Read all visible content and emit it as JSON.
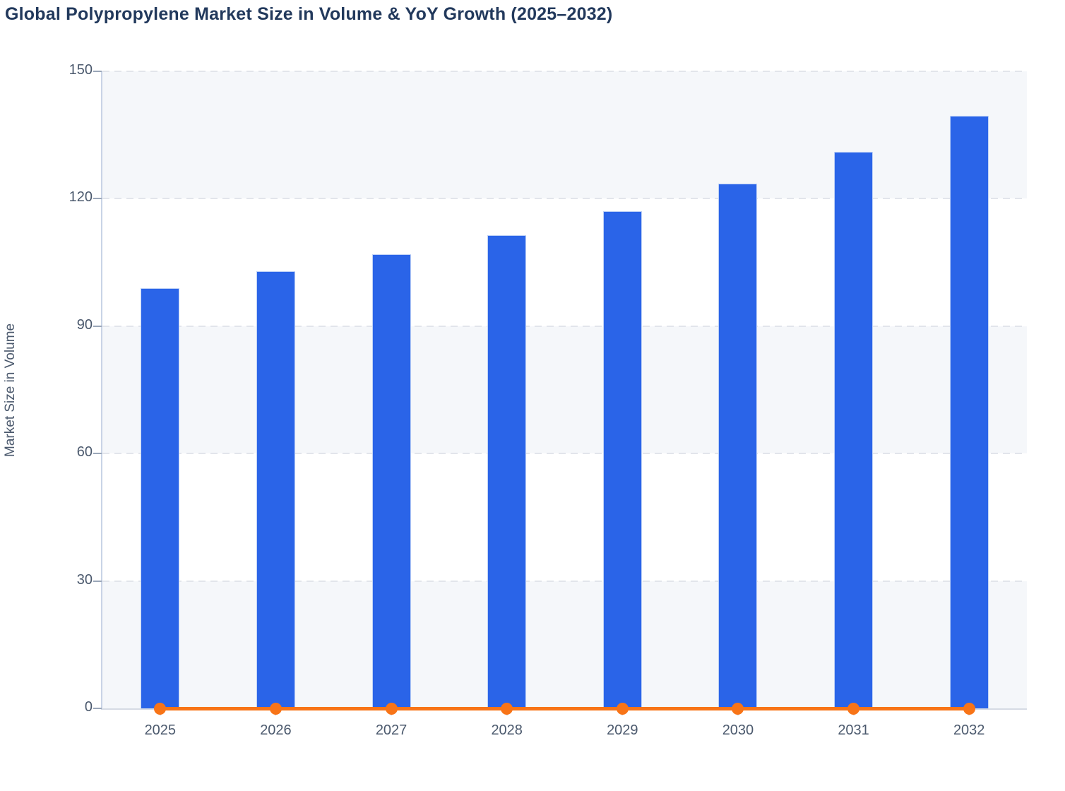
{
  "title": "Global Polypropylene Market Size in Volume & YoY Growth (2025–2032)",
  "colors": {
    "bar": "#2a64e8",
    "bar_edge": "#bed1f6",
    "line": "#f87417",
    "title_text": "#22395c",
    "axis_text": "#4b596d",
    "grid": "#e2e5eb",
    "band": "#f5f7fa",
    "axis_line": "#c9d4e6",
    "zero_line": "#d6dbe4",
    "tick_stub": "#9aa6b8"
  },
  "chart_data": {
    "type": "bar",
    "title": "Global Polypropylene Market Size in Volume & YoY Growth (2025–2032)",
    "categories": [
      "2025",
      "2026",
      "2027",
      "2028",
      "2029",
      "2030",
      "2031",
      "2032"
    ],
    "series": [
      {
        "name": "Market Size in Volume",
        "type": "bar",
        "values": [
          99,
          103,
          107,
          111.5,
          117,
          123.5,
          131,
          139.5
        ]
      },
      {
        "name": "YoY Growth",
        "type": "line",
        "values": [
          0,
          0,
          0,
          0,
          0,
          0,
          0,
          0
        ]
      }
    ],
    "xlabel": "",
    "ylabel": "Market Size in Volume",
    "ylim": [
      0,
      150
    ],
    "yticks": [
      0,
      30,
      60,
      90,
      120,
      150
    ],
    "grid": "horizontal-dashed",
    "plot_bands": "alternating light bands between 0-30, 60-90, 120-150",
    "legend_position": "none"
  }
}
